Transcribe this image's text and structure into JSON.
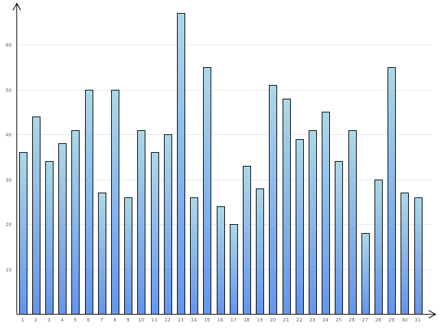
{
  "chart_data": {
    "type": "bar",
    "title": "",
    "xlabel": "",
    "ylabel": "",
    "categories": [
      "1",
      "2",
      "3",
      "4",
      "5",
      "6",
      "7",
      "8",
      "9",
      "10",
      "11",
      "12",
      "13",
      "14",
      "15",
      "16",
      "17",
      "18",
      "19",
      "20",
      "21",
      "22",
      "23",
      "24",
      "25",
      "26",
      "27",
      "28",
      "29",
      "30",
      "31"
    ],
    "values": [
      36,
      44,
      34,
      38,
      41,
      50,
      27,
      50,
      26,
      41,
      36,
      40,
      67,
      26,
      55,
      24,
      20,
      33,
      28,
      51,
      48,
      39,
      41,
      45,
      34,
      41,
      18,
      30,
      55,
      27,
      26
    ],
    "ylim": [
      0,
      67
    ],
    "yticks": [
      "10",
      "20",
      "30",
      "40",
      "50",
      "60"
    ],
    "grid": true,
    "legend": "none",
    "colors": {
      "bar_top": "#add8e6",
      "bar_bottom": "#6495ed",
      "grid": "#e6e6e6",
      "axis": "#000000"
    }
  }
}
